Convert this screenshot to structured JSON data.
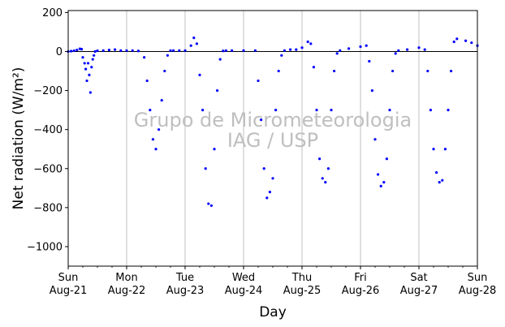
{
  "chart_data": {
    "type": "scatter",
    "xlabel": "Day",
    "ylabel": "Net radiation (W/m²)",
    "watermark": [
      "Grupo de Micrometeorologia",
      "IAG / USP"
    ],
    "xlim": [
      0,
      7
    ],
    "ylim": [
      -1100,
      210
    ],
    "y_ticks": [
      200,
      0,
      -200,
      -400,
      -600,
      -800,
      -1000
    ],
    "x_ticks": [
      {
        "day": "Sun",
        "date": "Aug-21"
      },
      {
        "day": "Mon",
        "date": "Aug-22"
      },
      {
        "day": "Tue",
        "date": "Aug-23"
      },
      {
        "day": "Wed",
        "date": "Aug-24"
      },
      {
        "day": "Thu",
        "date": "Aug-25"
      },
      {
        "day": "Fri",
        "date": "Aug-26"
      },
      {
        "day": "Sat",
        "date": "Aug-27"
      },
      {
        "day": "Sun",
        "date": "Aug-28"
      }
    ],
    "grid": "x-major",
    "zero_line": true,
    "colors": {
      "points": "#0000ff",
      "grid": "#b0b0b0",
      "axis": "#000000",
      "watermark": "#bfbfbf"
    },
    "series": [
      {
        "values": [
          [
            0.0,
            0
          ],
          [
            0.05,
            2
          ],
          [
            0.1,
            4
          ],
          [
            0.15,
            8
          ],
          [
            0.2,
            14
          ],
          [
            0.23,
            12
          ],
          [
            0.25,
            -30
          ],
          [
            0.28,
            -60
          ],
          [
            0.3,
            -90
          ],
          [
            0.32,
            -150
          ],
          [
            0.34,
            -60
          ],
          [
            0.36,
            -120
          ],
          [
            0.38,
            -210
          ],
          [
            0.4,
            -80
          ],
          [
            0.42,
            -40
          ],
          [
            0.44,
            -20
          ],
          [
            0.46,
            0
          ],
          [
            0.5,
            4
          ],
          [
            0.6,
            5
          ],
          [
            0.7,
            8
          ],
          [
            0.8,
            10
          ],
          [
            0.9,
            5
          ],
          [
            1.0,
            5
          ],
          [
            1.1,
            5
          ],
          [
            1.2,
            3
          ],
          [
            1.3,
            -30
          ],
          [
            1.35,
            -150
          ],
          [
            1.4,
            -300
          ],
          [
            1.45,
            -450
          ],
          [
            1.5,
            -500
          ],
          [
            1.55,
            -400
          ],
          [
            1.6,
            -250
          ],
          [
            1.65,
            -100
          ],
          [
            1.7,
            -20
          ],
          [
            1.75,
            5
          ],
          [
            1.8,
            5
          ],
          [
            1.9,
            5
          ],
          [
            2.0,
            5
          ],
          [
            2.1,
            30
          ],
          [
            2.15,
            70
          ],
          [
            2.2,
            40
          ],
          [
            2.25,
            -120
          ],
          [
            2.3,
            -300
          ],
          [
            2.35,
            -600
          ],
          [
            2.4,
            -780
          ],
          [
            2.45,
            -790
          ],
          [
            2.5,
            -500
          ],
          [
            2.55,
            -200
          ],
          [
            2.6,
            -40
          ],
          [
            2.65,
            3
          ],
          [
            2.7,
            5
          ],
          [
            2.8,
            5
          ],
          [
            3.0,
            5
          ],
          [
            3.2,
            5
          ],
          [
            3.25,
            -150
          ],
          [
            3.3,
            -350
          ],
          [
            3.35,
            -600
          ],
          [
            3.4,
            -750
          ],
          [
            3.45,
            -720
          ],
          [
            3.5,
            -650
          ],
          [
            3.55,
            -300
          ],
          [
            3.6,
            -100
          ],
          [
            3.65,
            -20
          ],
          [
            3.7,
            5
          ],
          [
            3.8,
            10
          ],
          [
            3.9,
            10
          ],
          [
            4.0,
            20
          ],
          [
            4.1,
            50
          ],
          [
            4.15,
            40
          ],
          [
            4.2,
            -80
          ],
          [
            4.25,
            -300
          ],
          [
            4.3,
            -550
          ],
          [
            4.35,
            -650
          ],
          [
            4.4,
            -670
          ],
          [
            4.45,
            -600
          ],
          [
            4.5,
            -300
          ],
          [
            4.55,
            -100
          ],
          [
            4.6,
            -10
          ],
          [
            4.65,
            5
          ],
          [
            4.8,
            15
          ],
          [
            5.0,
            25
          ],
          [
            5.1,
            30
          ],
          [
            5.15,
            -50
          ],
          [
            5.2,
            -200
          ],
          [
            5.25,
            -450
          ],
          [
            5.3,
            -630
          ],
          [
            5.35,
            -690
          ],
          [
            5.4,
            -670
          ],
          [
            5.45,
            -550
          ],
          [
            5.5,
            -300
          ],
          [
            5.55,
            -100
          ],
          [
            5.6,
            -10
          ],
          [
            5.65,
            5
          ],
          [
            5.8,
            10
          ],
          [
            6.0,
            20
          ],
          [
            6.1,
            10
          ],
          [
            6.15,
            -100
          ],
          [
            6.2,
            -300
          ],
          [
            6.25,
            -500
          ],
          [
            6.3,
            -620
          ],
          [
            6.35,
            -670
          ],
          [
            6.4,
            -660
          ],
          [
            6.45,
            -500
          ],
          [
            6.5,
            -300
          ],
          [
            6.55,
            -100
          ],
          [
            6.6,
            50
          ],
          [
            6.65,
            65
          ],
          [
            6.8,
            55
          ],
          [
            6.9,
            45
          ],
          [
            7.0,
            30
          ]
        ]
      }
    ]
  }
}
